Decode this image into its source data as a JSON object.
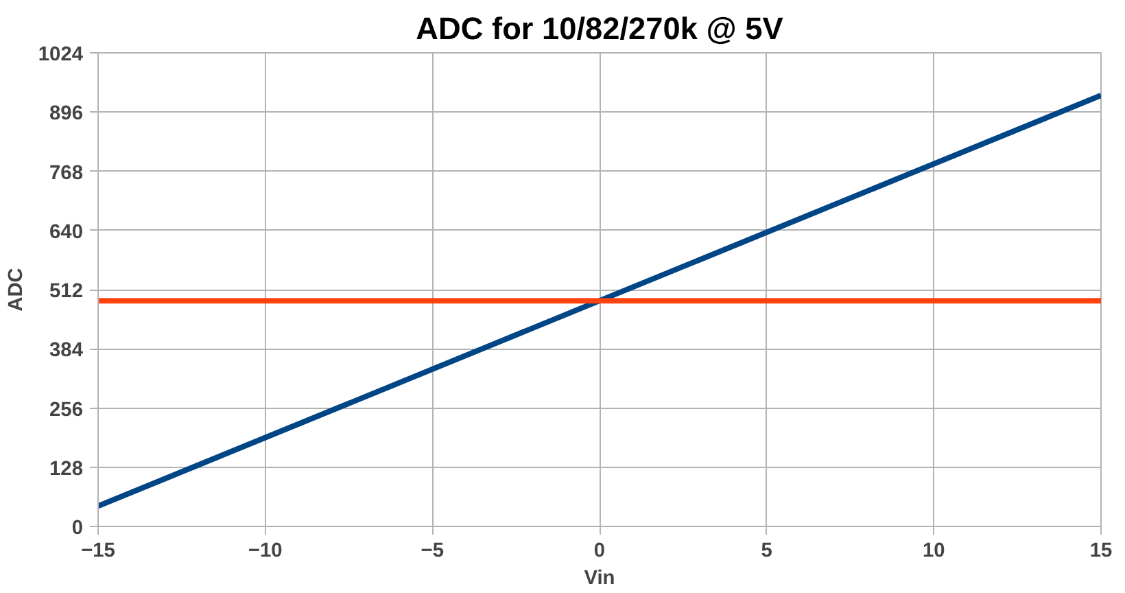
{
  "chart_data": {
    "type": "line",
    "title": "ADC for 10/82/270k @ 5V",
    "xlabel": "Vin",
    "ylabel": "ADC",
    "series": [
      {
        "color": "#004586",
        "x": [
          -15,
          0,
          15
        ],
        "values": [
          44,
          488,
          932
        ]
      },
      {
        "color": "#ff420e",
        "x": [
          -15,
          15
        ],
        "values": [
          488,
          488
        ]
      }
    ],
    "xlim": [
      -15,
      15
    ],
    "xticks": [
      -15,
      -10,
      -5,
      0,
      5,
      10,
      15
    ],
    "ylim": [
      0,
      1024
    ],
    "yticks": [
      0,
      128,
      256,
      384,
      512,
      640,
      768,
      896,
      1024
    ],
    "grid": true,
    "marker": "none",
    "line_style": "solid"
  }
}
